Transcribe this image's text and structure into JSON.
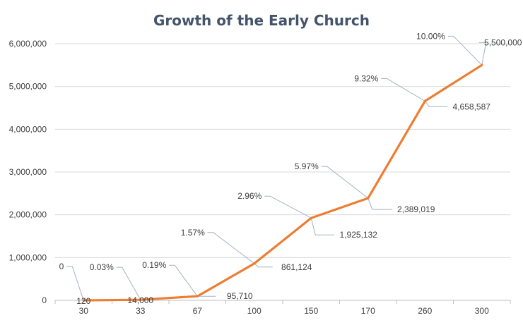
{
  "chart_data": {
    "type": "line",
    "title": "Growth of the Early Church",
    "xlabel": "",
    "ylabel": "",
    "categories": [
      "30",
      "33",
      "67",
      "100",
      "150",
      "170",
      "260",
      "300"
    ],
    "series": [
      {
        "values": [
          120,
          14000,
          95710,
          861124,
          1925132,
          2389019,
          4658587,
          5500000
        ],
        "value_labels": [
          "120",
          "14,000",
          "95,710",
          "861,124",
          "1,925,132",
          "2,389,019",
          "4,658,587",
          "5,500,000"
        ],
        "percent_labels": [
          "0",
          "0.03%",
          "0.19%",
          "1.57%",
          "2.96%",
          "5.97%",
          "9.32%",
          "10.00%"
        ],
        "color": "#ed7d31"
      }
    ],
    "ylim": [
      0,
      6000000
    ],
    "yticks": [
      0,
      1000000,
      2000000,
      3000000,
      4000000,
      5000000,
      6000000
    ],
    "ytick_labels": [
      "0",
      "1,000,000",
      "2,000,000",
      "3,000,000",
      "4,000,000",
      "5,000,000",
      "6,000,000"
    ],
    "grid": true,
    "legend": "none"
  },
  "colors": {
    "line": "#ed7d31",
    "title": "#44546a",
    "gridline": "#d9d9d9",
    "leader": "#a6b0c0"
  }
}
